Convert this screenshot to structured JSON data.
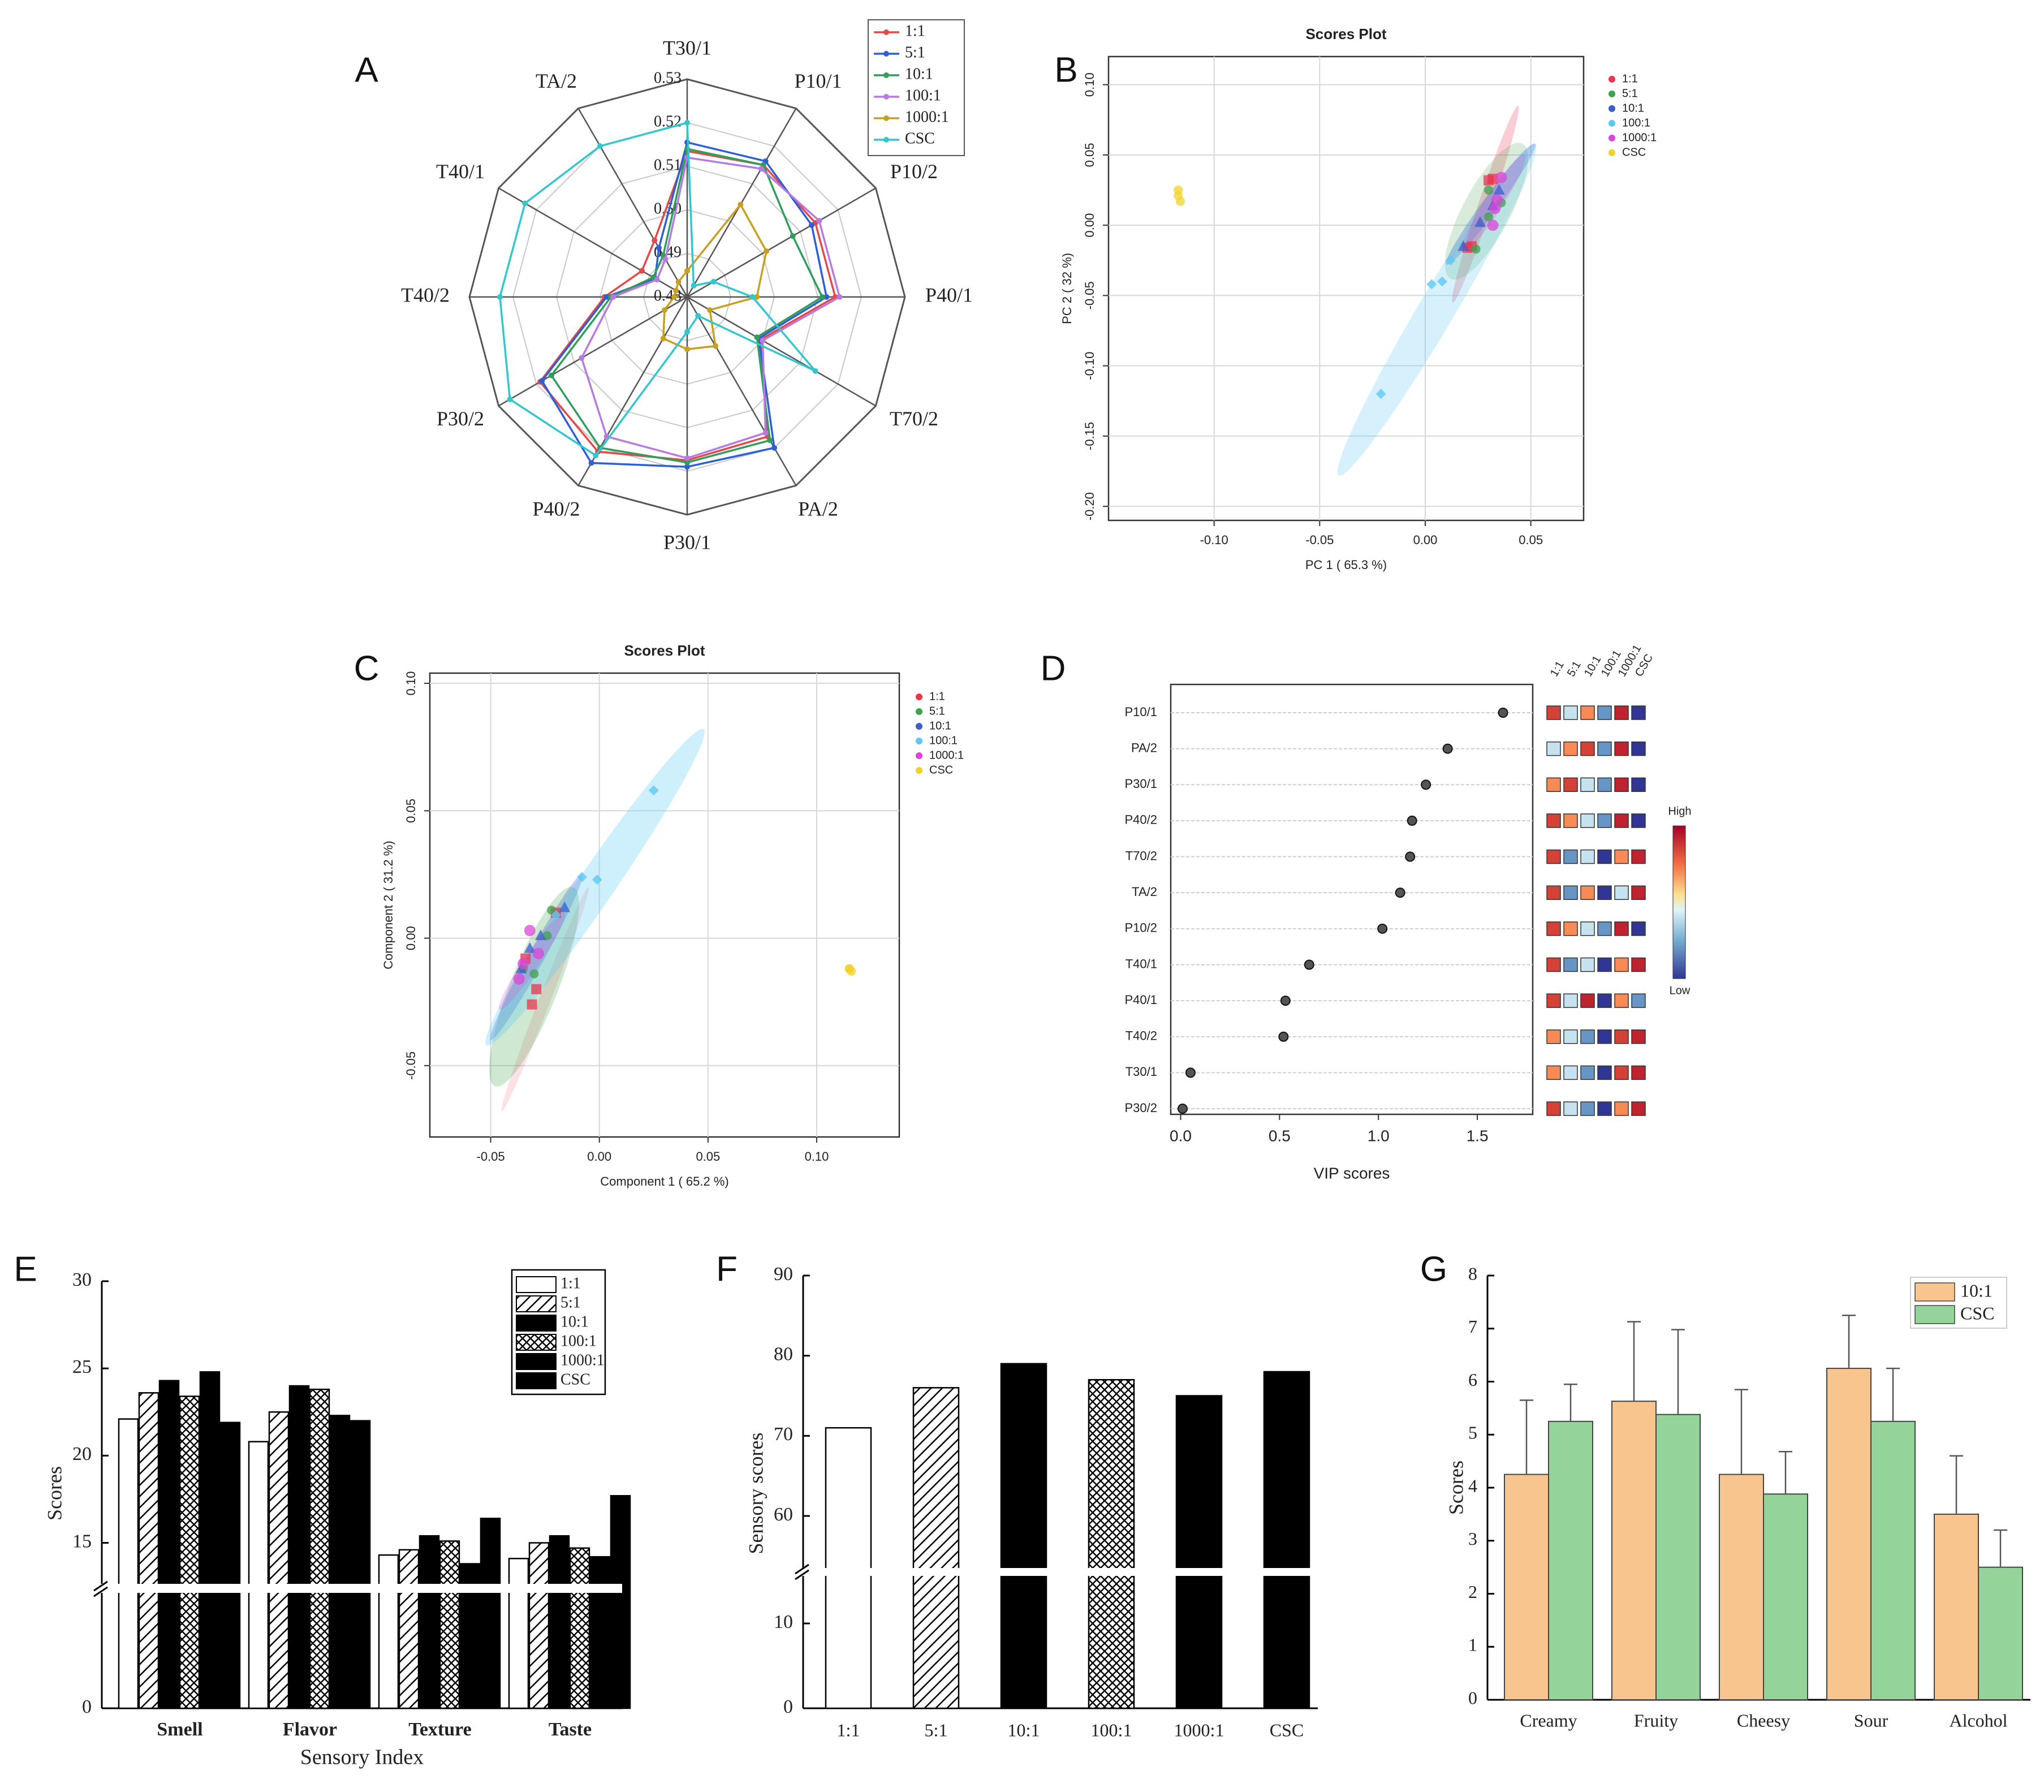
{
  "colors": {
    "r11": "#e8364f",
    "r51": "#3fa24d",
    "r101": "#3a5fcd",
    "r1001": "#5cc9f5",
    "r10001": "#d946d8",
    "csc": "#f1d12a",
    "radar_11": "#e24a4a",
    "radar_51": "#2f5fd6",
    "radar_101": "#2f9d5b",
    "radar_1001": "#b57be0",
    "radar_10001": "#c8a020",
    "radar_csc": "#33c6cf",
    "g_101": "#f8c58e",
    "g_csc": "#94d49a"
  },
  "chart_data": [
    {
      "panel": "A",
      "type": "radar",
      "axes": [
        "T30/1",
        "P10/1",
        "P10/2",
        "P40/1",
        "T70/2",
        "PA/2",
        "P30/1",
        "P40/2",
        "P30/2",
        "T40/2",
        "T40/1",
        "TA/2"
      ],
      "rlim": [
        0.48,
        0.53
      ],
      "ticks": [
        "0.48",
        "0.49",
        "0.50",
        "0.51",
        "0.52",
        "0.53"
      ],
      "series": [
        {
          "name": "1:1",
          "values": [
            0.5135,
            0.515,
            0.514,
            0.514,
            0.4995,
            0.517,
            0.5175,
            0.521,
            0.519,
            0.499,
            0.492,
            0.495
          ]
        },
        {
          "name": "5:1",
          "values": [
            0.5155,
            0.516,
            0.513,
            0.512,
            0.499,
            0.52,
            0.519,
            0.524,
            0.5185,
            0.4985,
            0.4885,
            0.493
          ]
        },
        {
          "name": "10:1",
          "values": [
            0.514,
            0.515,
            0.508,
            0.511,
            0.4985,
            0.518,
            0.518,
            0.52,
            0.516,
            0.4975,
            0.489,
            0.491
          ]
        },
        {
          "name": "100:1",
          "values": [
            0.512,
            0.514,
            0.515,
            0.515,
            0.5,
            0.516,
            0.517,
            0.517,
            0.508,
            0.497,
            0.488,
            0.49
          ]
        },
        {
          "name": "1000:1",
          "values": [
            0.486,
            0.5045,
            0.501,
            0.496,
            0.486,
            0.493,
            0.492,
            0.491,
            0.486,
            0.483,
            0.483,
            0.484
          ]
        },
        {
          "name": "CSC",
          "values": [
            0.52,
            0.483,
            0.487,
            0.495,
            0.514,
            0.485,
            0.488,
            0.522,
            0.527,
            0.523,
            0.523,
            0.52
          ]
        }
      ],
      "legend": "top-right"
    },
    {
      "panel": "B",
      "type": "scatter",
      "title": "Scores Plot",
      "xlabel": "PC 1 ( 65.3 %)",
      "ylabel": "PC 2 ( 32 %)",
      "xlim": [
        -0.15,
        0.075
      ],
      "ylim": [
        -0.21,
        0.12
      ],
      "xticks": [
        "-0.10",
        "-0.05",
        "0.00",
        "0.05"
      ],
      "yticks": [
        "-0.20",
        "-0.15",
        "-0.10",
        "-0.05",
        "0.00",
        "0.05",
        "0.10"
      ],
      "series": [
        {
          "name": "1:1",
          "points": [
            [
              0.03,
              0.032
            ],
            [
              0.032,
              0.033
            ],
            [
              0.02,
              -0.016
            ],
            [
              0.022,
              -0.015
            ]
          ]
        },
        {
          "name": "5:1",
          "points": [
            [
              0.03,
              0.025
            ],
            [
              0.036,
              0.016
            ],
            [
              0.024,
              -0.017
            ],
            [
              0.03,
              0.006
            ]
          ]
        },
        {
          "name": "10:1",
          "points": [
            [
              0.035,
              0.025
            ],
            [
              0.018,
              -0.015
            ],
            [
              0.032,
              0.014
            ],
            [
              0.026,
              0.002
            ]
          ]
        },
        {
          "name": "100:1",
          "points": [
            [
              0.003,
              -0.042
            ],
            [
              0.008,
              -0.04
            ],
            [
              -0.021,
              -0.12
            ],
            [
              0.012,
              -0.025
            ]
          ]
        },
        {
          "name": "1000:1",
          "points": [
            [
              0.036,
              0.034
            ],
            [
              0.033,
              0.012
            ],
            [
              0.032,
              0.0
            ],
            [
              0.034,
              0.018
            ]
          ]
        },
        {
          "name": "CSC",
          "points": [
            [
              -0.117,
              0.025
            ],
            [
              -0.117,
              0.021
            ],
            [
              -0.116,
              0.017
            ]
          ]
        }
      ],
      "legend": "top-right"
    },
    {
      "panel": "C",
      "type": "scatter",
      "title": "Scores Plot",
      "xlabel": "Component 1 ( 65.2 %)",
      "ylabel": "Component 2 ( 31.2 %)",
      "xlim": [
        -0.078,
        0.138
      ],
      "ylim": [
        -0.078,
        0.104
      ],
      "xticks": [
        "-0.05",
        "0.00",
        "0.05",
        "0.10"
      ],
      "yticks": [
        "-0.05",
        "0.00",
        "0.05",
        "0.10"
      ],
      "series": [
        {
          "name": "1:1",
          "points": [
            [
              -0.02,
              0.01
            ],
            [
              -0.029,
              -0.02
            ],
            [
              -0.031,
              -0.026
            ],
            [
              -0.034,
              -0.008
            ]
          ]
        },
        {
          "name": "5:1",
          "points": [
            [
              -0.022,
              0.011
            ],
            [
              -0.03,
              -0.014
            ],
            [
              -0.024,
              0.001
            ],
            [
              -0.035,
              -0.012
            ]
          ]
        },
        {
          "name": "10:1",
          "points": [
            [
              -0.016,
              0.012
            ],
            [
              -0.032,
              -0.004
            ],
            [
              -0.036,
              -0.012
            ],
            [
              -0.027,
              0.001
            ]
          ]
        },
        {
          "name": "100:1",
          "points": [
            [
              0.025,
              0.058
            ],
            [
              -0.008,
              0.024
            ],
            [
              -0.001,
              0.023
            ],
            [
              -0.02,
              0.009
            ]
          ]
        },
        {
          "name": "1000:1",
          "points": [
            [
              -0.032,
              0.003
            ],
            [
              -0.037,
              -0.016
            ],
            [
              -0.035,
              -0.01
            ],
            [
              -0.028,
              -0.006
            ]
          ]
        },
        {
          "name": "CSC",
          "points": [
            [
              0.115,
              -0.012
            ],
            [
              0.115,
              -0.012
            ],
            [
              0.116,
              -0.013
            ]
          ]
        }
      ],
      "legend": "top-right"
    },
    {
      "panel": "D",
      "type": "dot",
      "xlabel": "VIP scores",
      "xlim": [
        -0.05,
        1.78
      ],
      "xticks": [
        "0.0",
        "0.5",
        "1.0",
        "1.5"
      ],
      "categories": [
        "P10/1",
        "PA/2",
        "P30/1",
        "P40/2",
        "T70/2",
        "TA/2",
        "P10/2",
        "T40/1",
        "P40/1",
        "T40/2",
        "T30/1",
        "P30/2"
      ],
      "values": [
        1.63,
        1.35,
        1.24,
        1.17,
        1.16,
        1.11,
        1.02,
        0.65,
        0.53,
        0.52,
        0.05,
        0.01
      ],
      "heatmap_columns": [
        "1:1",
        "5:1",
        "10:1",
        "100:1",
        "1000:1",
        "CSC"
      ],
      "heatmap": [
        [
          0.85,
          0.4,
          0.7,
          0.2,
          0.92,
          0.0
        ],
        [
          0.4,
          0.7,
          0.85,
          0.2,
          0.92,
          0.0
        ],
        [
          0.7,
          0.85,
          0.4,
          0.2,
          0.92,
          0.0
        ],
        [
          0.85,
          0.7,
          0.4,
          0.2,
          0.92,
          0.0
        ],
        [
          0.85,
          0.2,
          0.4,
          0.0,
          0.7,
          0.92
        ],
        [
          0.85,
          0.2,
          0.7,
          0.0,
          0.4,
          0.92
        ],
        [
          0.85,
          0.7,
          0.4,
          0.2,
          0.92,
          0.0
        ],
        [
          0.85,
          0.2,
          0.4,
          0.0,
          0.7,
          0.92
        ],
        [
          0.85,
          0.4,
          0.92,
          0.0,
          0.7,
          0.2
        ],
        [
          0.7,
          0.4,
          0.2,
          0.0,
          0.85,
          0.92
        ],
        [
          0.7,
          0.4,
          0.2,
          0.0,
          0.85,
          0.92
        ],
        [
          0.85,
          0.4,
          0.2,
          0.0,
          0.7,
          0.92
        ]
      ],
      "scale_high": "High",
      "scale_low": "Low"
    },
    {
      "panel": "E",
      "type": "bar",
      "xlabel": "Sensory Index",
      "ylabel": "Scores",
      "categories": [
        "Smell",
        "Flavor",
        "Texture",
        "Taste"
      ],
      "yticks": [
        "0",
        "15",
        "20",
        "25",
        "30"
      ],
      "series": [
        {
          "name": "1:1",
          "values": [
            22.1,
            20.8,
            14.3,
            14.1
          ]
        },
        {
          "name": "5:1",
          "values": [
            23.6,
            22.5,
            14.6,
            15.0
          ]
        },
        {
          "name": "10:1",
          "values": [
            24.3,
            24.0,
            15.4,
            15.4
          ]
        },
        {
          "name": "100:1",
          "values": [
            23.4,
            23.8,
            15.1,
            14.7
          ]
        },
        {
          "name": "1000:1",
          "values": [
            24.8,
            22.3,
            13.8,
            14.2
          ]
        },
        {
          "name": "CSC",
          "values": [
            21.9,
            22.0,
            16.4,
            17.7
          ]
        }
      ],
      "legend": "top-right"
    },
    {
      "panel": "F",
      "type": "bar",
      "ylabel": "Sensory scores",
      "categories": [
        "1:1",
        "5:1",
        "10:1",
        "100:1",
        "1000:1",
        "CSC"
      ],
      "values": [
        71,
        76,
        79,
        77,
        75,
        78
      ],
      "yticks": [
        "0",
        "10",
        "60",
        "70",
        "80",
        "90"
      ]
    },
    {
      "panel": "G",
      "type": "bar",
      "ylabel": "Scores",
      "categories": [
        "Creamy",
        "Fruity",
        "Cheesy",
        "Sour",
        "Alcohol"
      ],
      "ylim": [
        0,
        8
      ],
      "yticks": [
        "0",
        "1",
        "2",
        "3",
        "4",
        "5",
        "6",
        "7",
        "8"
      ],
      "series": [
        {
          "name": "10:1",
          "values": [
            4.25,
            5.63,
            4.25,
            6.25,
            3.5
          ],
          "errors": [
            1.4,
            1.5,
            1.6,
            1.0,
            1.1
          ]
        },
        {
          "name": "CSC",
          "values": [
            5.25,
            5.38,
            3.88,
            5.25,
            2.5
          ],
          "errors": [
            0.7,
            1.6,
            0.8,
            1.0,
            0.7
          ]
        }
      ],
      "legend": "top-right"
    }
  ],
  "panel_labels": [
    "A",
    "B",
    "C",
    "D",
    "E",
    "F",
    "G"
  ]
}
